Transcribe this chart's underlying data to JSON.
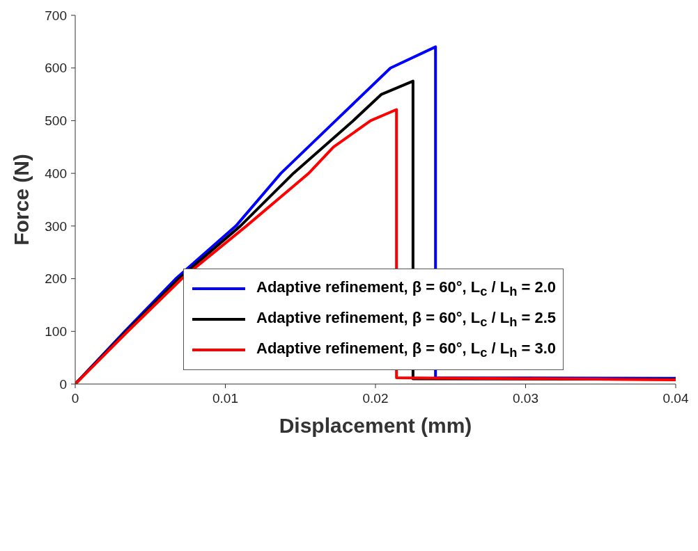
{
  "chart_data": {
    "type": "line",
    "xlabel": "Displacement (mm)",
    "ylabel": "Force (N)",
    "xlim": [
      0,
      0.04
    ],
    "xticks": [
      0,
      0.01,
      0.02,
      0.03,
      0.04
    ],
    "ylim": [
      0,
      700
    ],
    "yticks": [
      0,
      100,
      200,
      300,
      400,
      500,
      600,
      700
    ],
    "grid": false,
    "legend": "right",
    "marker": "none",
    "line_style": "solid",
    "series": [
      {
        "name": "Adaptive refinement, β = 60°, L$_{c}$ / L$_{h}$  = 2.0",
        "color": "#0000ff",
        "x": [
          0,
          0.0033,
          0.0067,
          0.0107,
          0.0137,
          0.01735,
          0.021,
          0.024,
          0.024,
          0.04
        ],
        "values": [
          0,
          100,
          200,
          300,
          400,
          500,
          600,
          640,
          12,
          11
        ]
      },
      {
        "name": "Adaptive refinement, β = 60°, L$_{c}$ / L$_{h}$  = 2.5",
        "color": "#000000",
        "x": [
          0,
          0.0034,
          0.0069,
          0.011,
          0.01453,
          0.01852,
          0.0204,
          0.0225,
          0.0225,
          0.04
        ],
        "values": [
          0,
          100,
          200,
          300,
          400,
          500,
          550,
          575,
          10,
          9
        ]
      },
      {
        "name": "Adaptive refinement, β = 60°, L$_{c}$ / L$_{h}$  = 3.0",
        "color": "#ff0000",
        "x": [
          0,
          0.0035,
          0.0071,
          0.0114,
          0.01555,
          0.0172,
          0.01968,
          0.0214,
          0.0214,
          0.04
        ],
        "values": [
          0,
          100,
          200,
          300,
          400,
          450,
          500,
          521,
          12,
          8
        ]
      }
    ]
  }
}
